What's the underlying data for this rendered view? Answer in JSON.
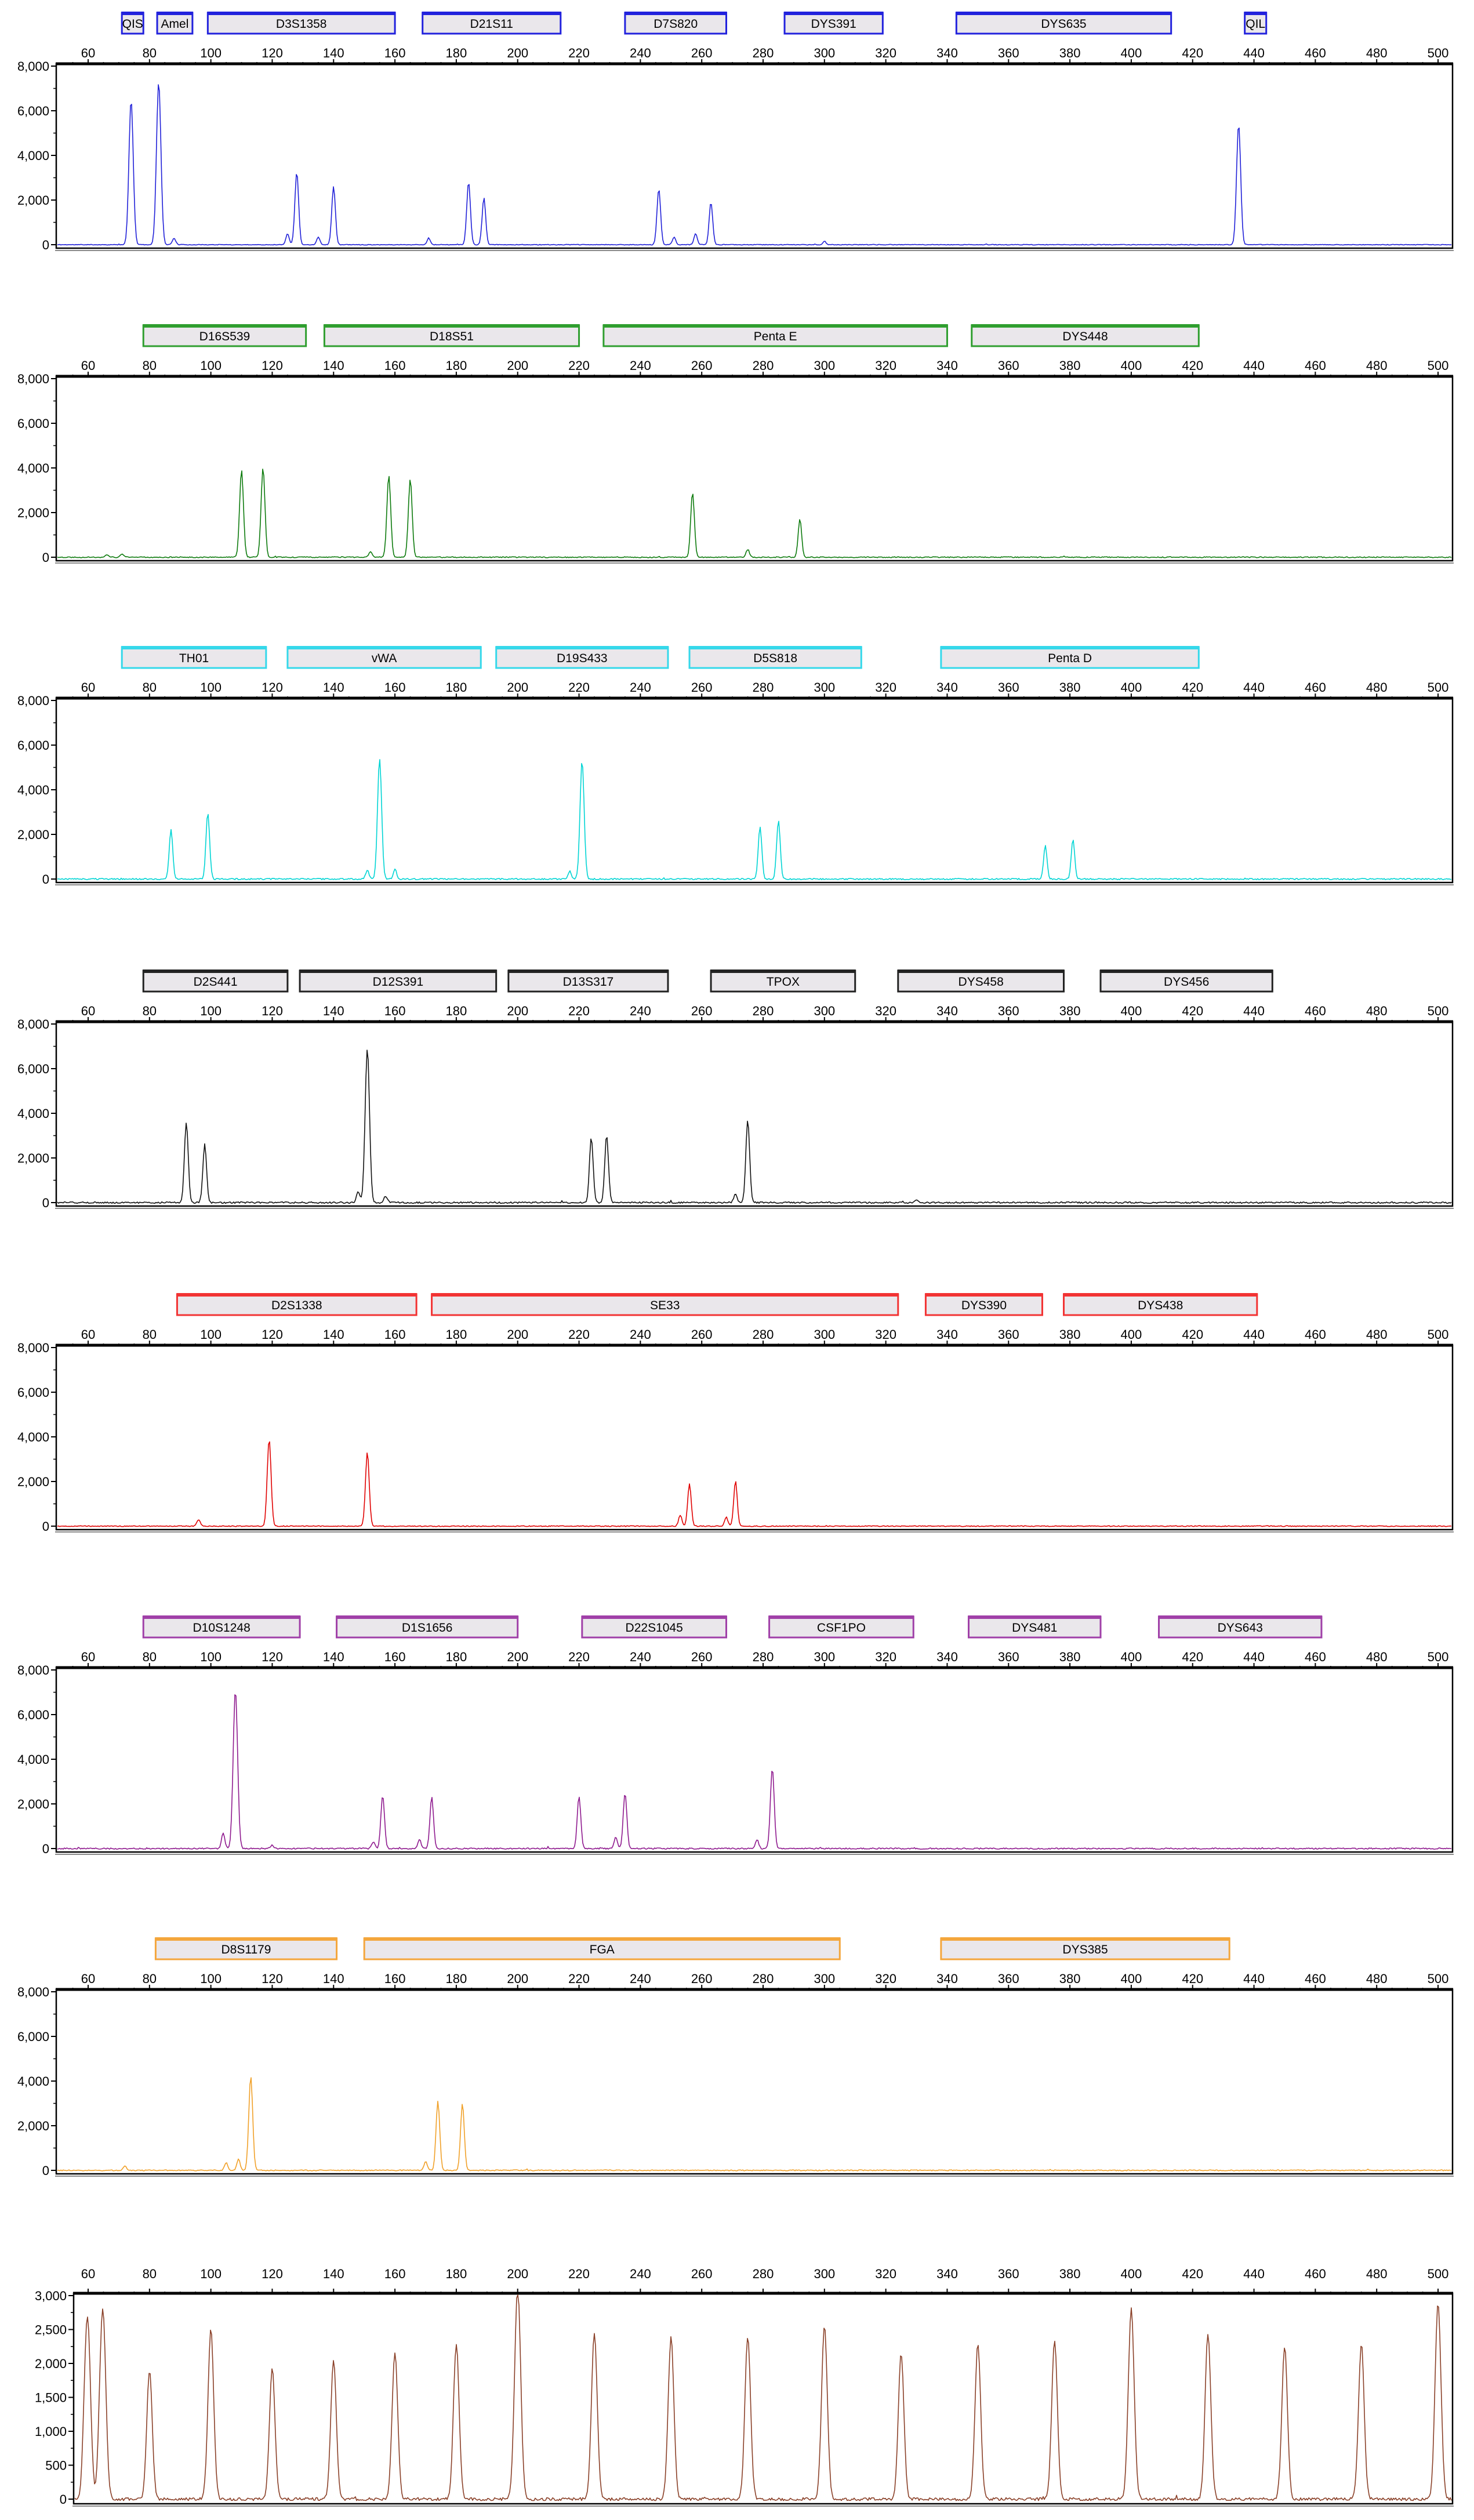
{
  "x_axis": {
    "start_bp": 60,
    "end_bp": 500,
    "tick_step": 20,
    "tick_labels": [
      "60",
      "80",
      "100",
      "120",
      "140",
      "160",
      "180",
      "200",
      "220",
      "240",
      "260",
      "280",
      "300",
      "320",
      "340",
      "360",
      "380",
      "400",
      "420",
      "440",
      "460",
      "480",
      "500"
    ]
  },
  "y_axis_std": {
    "max": 8000,
    "tick_values": [
      8000,
      6000,
      4000,
      2000,
      0
    ],
    "tick_labels": [
      "8,000",
      "6,000",
      "4,000",
      "2,000",
      "0"
    ]
  },
  "y_axis_ladder": {
    "max": 3000,
    "tick_values": [
      3000,
      2500,
      2000,
      1500,
      1000,
      500,
      0
    ],
    "tick_labels": [
      "3,000",
      "2,500",
      "2,000",
      "1,500",
      "1,000",
      "500",
      "0"
    ]
  },
  "chart_data": [
    {
      "type": "line",
      "name": "blue-channel",
      "color": "#2020d8",
      "box_border": "#2222dd",
      "ylim": [
        0,
        8000
      ],
      "xlim": [
        55,
        505
      ],
      "noise": 15,
      "seed": 11,
      "markers": [
        {
          "label": "QIS",
          "start_bp": 71,
          "end_bp": 78
        },
        {
          "label": "Amel",
          "start_bp": 82.5,
          "end_bp": 94
        },
        {
          "label": "D3S1358",
          "start_bp": 99,
          "end_bp": 160
        },
        {
          "label": "D21S11",
          "start_bp": 169,
          "end_bp": 214
        },
        {
          "label": "D7S820",
          "start_bp": 235,
          "end_bp": 268
        },
        {
          "label": "DYS391",
          "start_bp": 287,
          "end_bp": 319
        },
        {
          "label": "DYS635",
          "start_bp": 343,
          "end_bp": 413
        },
        {
          "label": "QIL",
          "start_bp": 437,
          "end_bp": 444
        }
      ],
      "peaks": [
        {
          "bp": 74,
          "rfu": 6500
        },
        {
          "bp": 83,
          "rfu": 7300
        },
        {
          "bp": 88,
          "rfu": 300
        },
        {
          "bp": 125,
          "rfu": 500
        },
        {
          "bp": 128,
          "rfu": 3250
        },
        {
          "bp": 135,
          "rfu": 350
        },
        {
          "bp": 140,
          "rfu": 2600
        },
        {
          "bp": 171,
          "rfu": 300
        },
        {
          "bp": 184,
          "rfu": 2800
        },
        {
          "bp": 189,
          "rfu": 2100
        },
        {
          "bp": 246,
          "rfu": 2500
        },
        {
          "bp": 251,
          "rfu": 350
        },
        {
          "bp": 258,
          "rfu": 500
        },
        {
          "bp": 263,
          "rfu": 1900
        },
        {
          "bp": 300,
          "rfu": 150
        },
        {
          "bp": 435,
          "rfu": 5400
        }
      ]
    },
    {
      "type": "line",
      "name": "green-channel",
      "color": "#0c7a0c",
      "box_border": "#2f9e2f",
      "ylim": [
        0,
        8000
      ],
      "xlim": [
        55,
        505
      ],
      "noise": 22,
      "seed": 22,
      "markers": [
        {
          "label": "D16S539",
          "start_bp": 78,
          "end_bp": 131
        },
        {
          "label": "D18S51",
          "start_bp": 137,
          "end_bp": 220
        },
        {
          "label": "Penta E",
          "start_bp": 228,
          "end_bp": 340
        },
        {
          "label": "DYS448",
          "start_bp": 348,
          "end_bp": 422
        }
      ],
      "peaks": [
        {
          "bp": 66,
          "rfu": 120
        },
        {
          "bp": 71,
          "rfu": 150
        },
        {
          "bp": 110,
          "rfu": 3900
        },
        {
          "bp": 117,
          "rfu": 4000
        },
        {
          "bp": 152,
          "rfu": 250
        },
        {
          "bp": 158,
          "rfu": 3650
        },
        {
          "bp": 165,
          "rfu": 3500
        },
        {
          "bp": 257,
          "rfu": 2900
        },
        {
          "bp": 275,
          "rfu": 350
        },
        {
          "bp": 292,
          "rfu": 1700
        }
      ]
    },
    {
      "type": "line",
      "name": "cyan-channel",
      "color": "#00d4d4",
      "box_border": "#35d8ea",
      "ylim": [
        0,
        8000
      ],
      "xlim": [
        55,
        505
      ],
      "noise": 30,
      "seed": 33,
      "markers": [
        {
          "label": "TH01",
          "start_bp": 71,
          "end_bp": 118
        },
        {
          "label": "vWA",
          "start_bp": 125,
          "end_bp": 188
        },
        {
          "label": "D19S433",
          "start_bp": 193,
          "end_bp": 249
        },
        {
          "label": "D5S818",
          "start_bp": 256,
          "end_bp": 312
        },
        {
          "label": "Penta D",
          "start_bp": 338,
          "end_bp": 422
        }
      ],
      "peaks": [
        {
          "bp": 87,
          "rfu": 2200
        },
        {
          "bp": 99,
          "rfu": 2950
        },
        {
          "bp": 151,
          "rfu": 400
        },
        {
          "bp": 155,
          "rfu": 5400
        },
        {
          "bp": 160,
          "rfu": 450
        },
        {
          "bp": 217,
          "rfu": 350
        },
        {
          "bp": 221,
          "rfu": 5300
        },
        {
          "bp": 279,
          "rfu": 2350
        },
        {
          "bp": 285,
          "rfu": 2600
        },
        {
          "bp": 372,
          "rfu": 1480
        },
        {
          "bp": 381,
          "rfu": 1750
        }
      ]
    },
    {
      "type": "line",
      "name": "black-channel",
      "color": "#111111",
      "box_border": "#222222",
      "ylim": [
        0,
        8000
      ],
      "xlim": [
        55,
        505
      ],
      "noise": 35,
      "seed": 44,
      "markers": [
        {
          "label": "D2S441",
          "start_bp": 78,
          "end_bp": 125
        },
        {
          "label": "D12S391",
          "start_bp": 129,
          "end_bp": 193
        },
        {
          "label": "D13S317",
          "start_bp": 197,
          "end_bp": 249
        },
        {
          "label": "TPOX",
          "start_bp": 263,
          "end_bp": 310
        },
        {
          "label": "DYS458",
          "start_bp": 324,
          "end_bp": 378
        },
        {
          "label": "DYS456",
          "start_bp": 390,
          "end_bp": 446
        }
      ],
      "peaks": [
        {
          "bp": 92,
          "rfu": 3600
        },
        {
          "bp": 98,
          "rfu": 2600
        },
        {
          "bp": 148,
          "rfu": 500
        },
        {
          "bp": 151,
          "rfu": 6900
        },
        {
          "bp": 157,
          "rfu": 300
        },
        {
          "bp": 224,
          "rfu": 2900
        },
        {
          "bp": 229,
          "rfu": 3000
        },
        {
          "bp": 271,
          "rfu": 400
        },
        {
          "bp": 275,
          "rfu": 3700
        },
        {
          "bp": 330,
          "rfu": 150
        }
      ]
    },
    {
      "type": "line",
      "name": "red-channel",
      "color": "#e00000",
      "box_border": "#f23333",
      "ylim": [
        0,
        8000
      ],
      "xlim": [
        55,
        505
      ],
      "noise": 20,
      "seed": 55,
      "markers": [
        {
          "label": "D2S1338",
          "start_bp": 89,
          "end_bp": 167
        },
        {
          "label": "SE33",
          "start_bp": 172,
          "end_bp": 324
        },
        {
          "label": "DYS390",
          "start_bp": 333,
          "end_bp": 371
        },
        {
          "label": "DYS438",
          "start_bp": 378,
          "end_bp": 441
        }
      ],
      "peaks": [
        {
          "bp": 96,
          "rfu": 300
        },
        {
          "bp": 119,
          "rfu": 3900
        },
        {
          "bp": 151,
          "rfu": 3300
        },
        {
          "bp": 253,
          "rfu": 500
        },
        {
          "bp": 256,
          "rfu": 1900
        },
        {
          "bp": 268,
          "rfu": 400
        },
        {
          "bp": 271,
          "rfu": 2000
        }
      ]
    },
    {
      "type": "line",
      "name": "purple-channel",
      "color": "#8e198e",
      "box_border": "#a040a8",
      "ylim": [
        0,
        8000
      ],
      "xlim": [
        55,
        505
      ],
      "noise": 28,
      "seed": 66,
      "markers": [
        {
          "label": "D10S1248",
          "start_bp": 78,
          "end_bp": 129
        },
        {
          "label": "D1S1656",
          "start_bp": 141,
          "end_bp": 200
        },
        {
          "label": "D22S1045",
          "start_bp": 221,
          "end_bp": 268
        },
        {
          "label": "CSF1PO",
          "start_bp": 282,
          "end_bp": 329
        },
        {
          "label": "DYS481",
          "start_bp": 347,
          "end_bp": 390
        },
        {
          "label": "DYS643",
          "start_bp": 409,
          "end_bp": 462
        }
      ],
      "peaks": [
        {
          "bp": 104,
          "rfu": 700
        },
        {
          "bp": 108,
          "rfu": 7100
        },
        {
          "bp": 120,
          "rfu": 150
        },
        {
          "bp": 153,
          "rfu": 300
        },
        {
          "bp": 156,
          "rfu": 2400
        },
        {
          "bp": 168,
          "rfu": 400
        },
        {
          "bp": 172,
          "rfu": 2300
        },
        {
          "bp": 220,
          "rfu": 2350
        },
        {
          "bp": 232,
          "rfu": 500
        },
        {
          "bp": 235,
          "rfu": 2500
        },
        {
          "bp": 278,
          "rfu": 400
        },
        {
          "bp": 283,
          "rfu": 3600
        }
      ]
    },
    {
      "type": "line",
      "name": "orange-channel",
      "color": "#f0a028",
      "box_border": "#f4a63c",
      "ylim": [
        0,
        8000
      ],
      "xlim": [
        55,
        505
      ],
      "noise": 22,
      "seed": 77,
      "markers": [
        {
          "label": "D8S1179",
          "start_bp": 82,
          "end_bp": 141
        },
        {
          "label": "FGA",
          "start_bp": 150,
          "end_bp": 305
        },
        {
          "label": "DYS385",
          "start_bp": 338,
          "end_bp": 432
        }
      ],
      "peaks": [
        {
          "bp": 72,
          "rfu": 200
        },
        {
          "bp": 105,
          "rfu": 350
        },
        {
          "bp": 109,
          "rfu": 500
        },
        {
          "bp": 113,
          "rfu": 4200
        },
        {
          "bp": 170,
          "rfu": 400
        },
        {
          "bp": 174,
          "rfu": 3100
        },
        {
          "bp": 182,
          "rfu": 3000
        }
      ]
    },
    {
      "type": "line",
      "name": "size-standard-channel",
      "color": "#8a4028",
      "box_border": "#8a4028",
      "ylim": [
        0,
        3000
      ],
      "xlim": [
        55,
        505
      ],
      "noise": 22,
      "seed": 88,
      "markers": [],
      "peaks": [
        {
          "bp": 59,
          "rfu": 900
        },
        {
          "bp": 60,
          "rfu": 2200
        },
        {
          "bp": 64,
          "rfu": 880
        },
        {
          "bp": 65,
          "rfu": 2300
        },
        {
          "bp": 80,
          "rfu": 1900
        },
        {
          "bp": 100,
          "rfu": 2500
        },
        {
          "bp": 120,
          "rfu": 1950
        },
        {
          "bp": 140,
          "rfu": 2050
        },
        {
          "bp": 160,
          "rfu": 2170
        },
        {
          "bp": 180,
          "rfu": 2290
        },
        {
          "bp": 200,
          "rfu": 3150
        },
        {
          "bp": 225,
          "rfu": 2450
        },
        {
          "bp": 250,
          "rfu": 2400
        },
        {
          "bp": 275,
          "rfu": 2400
        },
        {
          "bp": 300,
          "rfu": 2550
        },
        {
          "bp": 325,
          "rfu": 2150
        },
        {
          "bp": 350,
          "rfu": 2300
        },
        {
          "bp": 375,
          "rfu": 2350
        },
        {
          "bp": 400,
          "rfu": 2800
        },
        {
          "bp": 425,
          "rfu": 2450
        },
        {
          "bp": 450,
          "rfu": 2250
        },
        {
          "bp": 475,
          "rfu": 2300
        },
        {
          "bp": 500,
          "rfu": 2900
        }
      ]
    }
  ],
  "marker_box_fill": "#eae7eb",
  "axis_color": "#000000"
}
